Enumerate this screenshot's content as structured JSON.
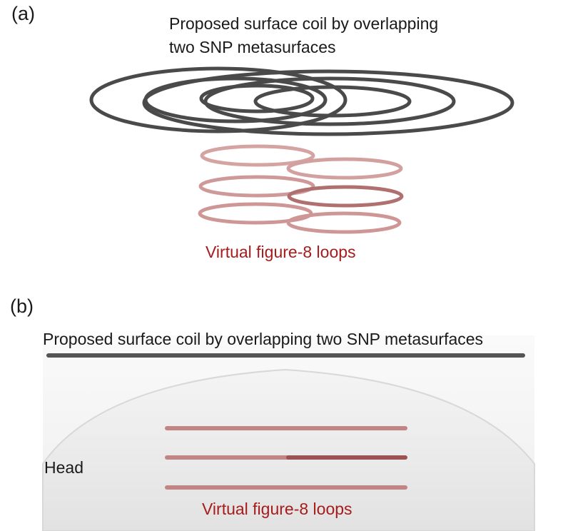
{
  "panel_a": {
    "label": "(a)",
    "title_line1": "Proposed surface coil by overlapping",
    "title_line2": "two SNP metasurfaces",
    "virtual_label": "Virtual figure-8 loops"
  },
  "panel_b": {
    "label": "(b)",
    "title": "Proposed surface coil by overlapping two SNP metasurfaces",
    "head_label": "Head",
    "virtual_label": "Virtual figure-8 loops"
  },
  "colors": {
    "coil_gray": "#4a4a4a",
    "virtual_red": "#a61c1c",
    "loop_pink": "#c98a8a",
    "head_fill": "#ececec"
  }
}
